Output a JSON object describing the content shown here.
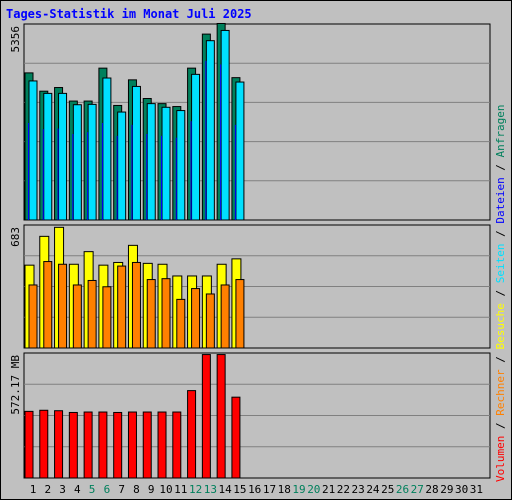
{
  "chart_title": "Tages-Statistik im Monat Juli 2025",
  "colors": {
    "anfragen": "#00805c",
    "dateien": "#0000ff",
    "seiten": "#00e0ff",
    "besuche": "#ffff00",
    "rechner": "#ff8000",
    "volumen": "#ff0000",
    "weekend_label": "#00805c",
    "weekday_label": "#000000",
    "plot_bg": "#c0c0c0",
    "grid": "#808080"
  },
  "chart_data": [
    {
      "type": "bar",
      "title": "Tages-Statistik im Monat Juli 2025",
      "panel": "top",
      "y_tick_label": "5356",
      "ylim": [
        0,
        5356
      ],
      "categories": [
        "1",
        "2",
        "3",
        "4",
        "5",
        "6",
        "7",
        "8",
        "9",
        "10",
        "11",
        "12",
        "13",
        "14",
        "15",
        "16",
        "17",
        "18",
        "19",
        "20",
        "21",
        "22",
        "23",
        "24",
        "25",
        "26",
        "27",
        "28",
        "29",
        "30",
        "31"
      ],
      "weekend_days": [
        "5",
        "6",
        "12",
        "13",
        "19",
        "20",
        "26",
        "27"
      ],
      "series": [
        {
          "name": "Anfragen",
          "values": [
            4020,
            3520,
            3620,
            3250,
            3250,
            4150,
            3130,
            3830,
            3320,
            3180,
            3100,
            4150,
            5080,
            5370,
            3890,
            0,
            0,
            0,
            0,
            0,
            0,
            0,
            0,
            0,
            0,
            0,
            0,
            0,
            0,
            0,
            0
          ]
        },
        {
          "name": "Dateien",
          "values": [
            2650,
            2480,
            2500,
            2350,
            2400,
            2650,
            2300,
            2600,
            2350,
            2300,
            2250,
            2700,
            4350,
            4250,
            2600,
            0,
            0,
            0,
            0,
            0,
            0,
            0,
            0,
            0,
            0,
            0,
            0,
            0,
            0,
            0,
            0
          ]
        },
        {
          "name": "Seiten",
          "values": [
            3800,
            3460,
            3460,
            3150,
            3160,
            3880,
            2950,
            3650,
            3180,
            3080,
            2990,
            3980,
            4900,
            5180,
            3770,
            0,
            0,
            0,
            0,
            0,
            0,
            0,
            0,
            0,
            0,
            0,
            0,
            0,
            0,
            0,
            0
          ]
        }
      ]
    },
    {
      "type": "bar",
      "panel": "middle",
      "y_tick_label": "683",
      "ylim": [
        0,
        683
      ],
      "series": [
        {
          "name": "Besuche",
          "values": [
            460,
            620,
            670,
            465,
            535,
            460,
            475,
            570,
            470,
            465,
            400,
            400,
            400,
            465,
            495,
            0,
            0,
            0,
            0,
            0,
            0,
            0,
            0,
            0,
            0,
            0,
            0,
            0,
            0,
            0,
            0
          ]
        },
        {
          "name": "Rechner",
          "values": [
            350,
            480,
            465,
            350,
            375,
            340,
            455,
            475,
            380,
            385,
            270,
            330,
            300,
            350,
            380,
            0,
            0,
            0,
            0,
            0,
            0,
            0,
            0,
            0,
            0,
            0,
            0,
            0,
            0,
            0,
            0
          ]
        }
      ]
    },
    {
      "type": "bar",
      "panel": "bottom",
      "y_tick_label": "572.17 MB",
      "ylim": [
        0,
        572.17
      ],
      "series": [
        {
          "name": "Volumen",
          "values": [
            305,
            310,
            308,
            300,
            302,
            302,
            300,
            302,
            302,
            302,
            302,
            400,
            565,
            565,
            370,
            0,
            0,
            0,
            0,
            0,
            0,
            0,
            0,
            0,
            0,
            0,
            0,
            0,
            0,
            0,
            0
          ]
        }
      ]
    }
  ],
  "legend": [
    {
      "label": "Volumen",
      "color": "#ff0000"
    },
    {
      "label": "Rechner",
      "color": "#ff8000"
    },
    {
      "label": "Besuche",
      "color": "#ffff00"
    },
    {
      "label": "Seiten",
      "color": "#00e0ff"
    },
    {
      "label": "Dateien",
      "color": "#0000ff"
    },
    {
      "label": "Anfragen",
      "color": "#00805c"
    }
  ],
  "legend_separator": " / "
}
